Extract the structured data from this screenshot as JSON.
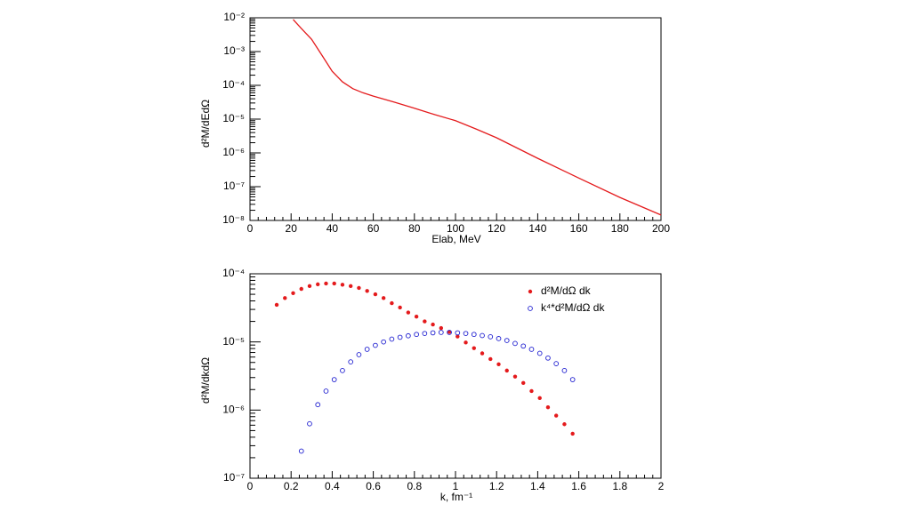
{
  "chart_data": [
    {
      "type": "line",
      "xlabel": "Elab, MeV",
      "ylabel": "d²M/dEdΩ",
      "x": [
        21,
        25,
        30,
        35,
        40,
        45,
        50,
        55,
        60,
        70,
        80,
        90,
        100,
        110,
        120,
        140,
        160,
        180,
        200
      ],
      "series": [
        {
          "color": "#e41a1c",
          "values": [
            0.0089,
            0.0048,
            0.0023,
            0.00078,
            0.00026,
            0.000127,
            8e-05,
            6e-05,
            4.8e-05,
            3.2e-05,
            2.1e-05,
            1.35e-05,
            9e-06,
            5.1e-06,
            2.8e-06,
            6.9e-07,
            1.8e-07,
            4.8e-08,
            1.45e-08
          ]
        }
      ],
      "xlim": [
        0,
        200
      ],
      "xticks": [
        0,
        20,
        40,
        60,
        80,
        100,
        120,
        140,
        160,
        180,
        200
      ],
      "ylog": true,
      "ylim": [
        1e-08,
        0.01
      ],
      "yticks": [
        {
          "value": 1e-08,
          "label": "10⁻⁸"
        },
        {
          "value": 1e-07,
          "label": "10⁻⁷"
        },
        {
          "value": 1e-06,
          "label": "10⁻⁶"
        },
        {
          "value": 1e-05,
          "label": "10⁻⁵"
        },
        {
          "value": 0.0001,
          "label": "10⁻⁴"
        },
        {
          "value": 0.001,
          "label": "10⁻³"
        },
        {
          "value": 0.01,
          "label": "10⁻²"
        }
      ]
    },
    {
      "type": "scatter",
      "xlabel": "k, fm⁻¹",
      "ylabel": "d²M/dkdΩ",
      "legend": "top right",
      "x": [
        0.13,
        0.17,
        0.21,
        0.25,
        0.29,
        0.33,
        0.37,
        0.41,
        0.45,
        0.49,
        0.53,
        0.57,
        0.61,
        0.65,
        0.69,
        0.73,
        0.77,
        0.81,
        0.85,
        0.89,
        0.93,
        0.97,
        1.01,
        1.05,
        1.09,
        1.13,
        1.17,
        1.21,
        1.25,
        1.29,
        1.33,
        1.37,
        1.41,
        1.45,
        1.49,
        1.53,
        1.57
      ],
      "series": [
        {
          "name": "d²M/dΩ dk",
          "color": "#e41a1c",
          "marker": "filled",
          "values": [
            3.5e-05,
            4.4e-05,
            5.2e-05,
            6e-05,
            6.6e-05,
            7e-05,
            7.2e-05,
            7.2e-05,
            6.9e-05,
            6.6e-05,
            6.2e-05,
            5.6e-05,
            5e-05,
            4.4e-05,
            3.7e-05,
            3.2e-05,
            2.7e-05,
            2.35e-05,
            2e-05,
            1.8e-05,
            1.6e-05,
            1.4e-05,
            1.2e-05,
            9.8e-06,
            8.1e-06,
            6.8e-06,
            5.6e-06,
            4.7e-06,
            3.8e-06,
            3.1e-06,
            2.5e-06,
            1.9e-06,
            1.5e-06,
            1.1e-06,
            8.3e-07,
            6.2e-07,
            4.5e-07
          ]
        },
        {
          "name": "k⁴*d²M/dΩ dk",
          "color": "#1f1fd0",
          "marker": "open",
          "values": [
            null,
            null,
            null,
            2.5e-07,
            6.3e-07,
            1.2e-06,
            1.9e-06,
            2.8e-06,
            3.8e-06,
            5.1e-06,
            6.5e-06,
            7.8e-06,
            8.9e-06,
            1e-05,
            1.1e-05,
            1.17e-05,
            1.23e-05,
            1.29e-05,
            1.33e-05,
            1.36e-05,
            1.38e-05,
            1.38e-05,
            1.36e-05,
            1.33e-05,
            1.29e-05,
            1.24e-05,
            1.19e-05,
            1.12e-05,
            1.05e-05,
            9.5e-06,
            8.7e-06,
            7.8e-06,
            6.8e-06,
            5.8e-06,
            4.8e-06,
            3.8e-06,
            2.8e-06
          ]
        }
      ],
      "xlim": [
        0,
        2
      ],
      "xticks": [
        0,
        0.2,
        0.4,
        0.6,
        0.8,
        1,
        1.2,
        1.4,
        1.6,
        1.8,
        2
      ],
      "ylog": true,
      "ylim": [
        1e-07,
        0.0001
      ],
      "yticks": [
        {
          "value": 1e-07,
          "label": "10⁻⁷"
        },
        {
          "value": 1e-06,
          "label": "10⁻⁶"
        },
        {
          "value": 1e-05,
          "label": "10⁻⁵"
        },
        {
          "value": 0.0001,
          "label": "10⁻⁴"
        }
      ]
    }
  ]
}
